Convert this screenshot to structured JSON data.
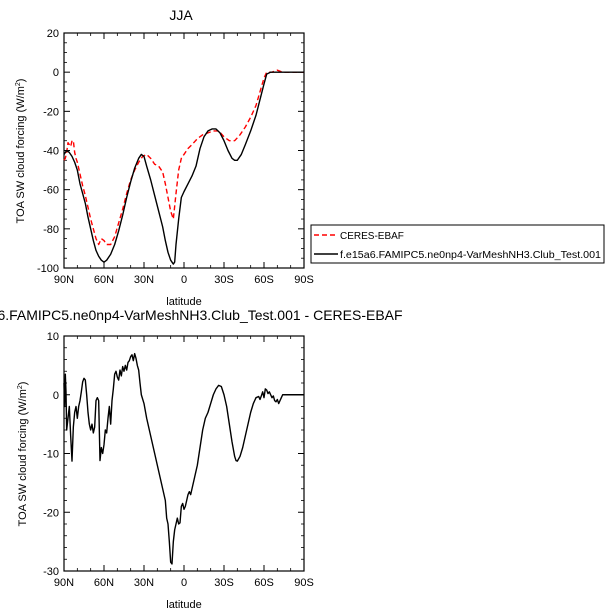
{
  "chart_data": [
    {
      "type": "line",
      "title": "JJA",
      "xlabel": "latitude",
      "ylabel_main": "TOA SW cloud forcing (W/m",
      "ylabel_sup": "2",
      "ylabel_close": ")",
      "xlim": [
        90,
        -90
      ],
      "ylim": [
        -100,
        20
      ],
      "xticks": [
        90,
        60,
        30,
        0,
        -30,
        -60,
        -90
      ],
      "xtick_labels": [
        "90N",
        "60N",
        "30N",
        "0",
        "30S",
        "60S",
        "90S"
      ],
      "yticks": [
        20,
        0,
        -20,
        -40,
        -60,
        -80,
        -100
      ],
      "ytick_labels": [
        "20",
        "0",
        "-20",
        "-40",
        "-60",
        "-80",
        "-100"
      ],
      "legend_position": "right",
      "series": [
        {
          "name": "CERES-EBAF",
          "color": "#ff0000",
          "style": "dashed",
          "points": [
            [
              90,
              -45
            ],
            [
              89,
              -44
            ],
            [
              88,
              -41
            ],
            [
              87,
              -36
            ],
            [
              86,
              -37
            ],
            [
              85,
              -38
            ],
            [
              84,
              -35
            ],
            [
              83,
              -35
            ],
            [
              82,
              -41
            ],
            [
              81,
              -44
            ],
            [
              80,
              -46
            ],
            [
              78,
              -52
            ],
            [
              76,
              -58
            ],
            [
              74,
              -63
            ],
            [
              72,
              -69
            ],
            [
              70,
              -75
            ],
            [
              68,
              -80
            ],
            [
              66,
              -85
            ],
            [
              64,
              -88
            ],
            [
              62,
              -85
            ],
            [
              60,
              -86
            ],
            [
              58,
              -88
            ],
            [
              55,
              -88
            ],
            [
              52,
              -84
            ],
            [
              49,
              -77
            ],
            [
              46,
              -70
            ],
            [
              43,
              -62
            ],
            [
              40,
              -55
            ],
            [
              37,
              -50
            ],
            [
              34,
              -46
            ],
            [
              31,
              -43
            ],
            [
              28,
              -42
            ],
            [
              25,
              -44
            ],
            [
              22,
              -47
            ],
            [
              19,
              -48
            ],
            [
              16,
              -51
            ],
            [
              14,
              -57
            ],
            [
              12,
              -64
            ],
            [
              10,
              -71
            ],
            [
              8,
              -75
            ],
            [
              6,
              -62
            ],
            [
              4,
              -50
            ],
            [
              2,
              -44
            ],
            [
              0,
              -42
            ],
            [
              -3,
              -39
            ],
            [
              -6,
              -37
            ],
            [
              -10,
              -34
            ],
            [
              -14,
              -32
            ],
            [
              -18,
              -31
            ],
            [
              -22,
              -30
            ],
            [
              -26,
              -30
            ],
            [
              -30,
              -33
            ],
            [
              -34,
              -35
            ],
            [
              -38,
              -35
            ],
            [
              -42,
              -32
            ],
            [
              -46,
              -28
            ],
            [
              -50,
              -23
            ],
            [
              -54,
              -17
            ],
            [
              -57,
              -10
            ],
            [
              -60,
              -3
            ],
            [
              -62,
              0
            ],
            [
              -66,
              0
            ],
            [
              -70,
              1
            ],
            [
              -74,
              0
            ],
            [
              -80,
              0
            ],
            [
              -90,
              0
            ]
          ]
        },
        {
          "name": "f.e15a6.FAMIPC5.ne0np4-VarMeshNH3.Club_Test.001",
          "color": "#000000",
          "style": "solid",
          "points": [
            [
              90,
              -42
            ],
            [
              88,
              -40
            ],
            [
              86,
              -41
            ],
            [
              84,
              -43
            ],
            [
              82,
              -46
            ],
            [
              80,
              -50
            ],
            [
              78,
              -57
            ],
            [
              76,
              -62
            ],
            [
              74,
              -67
            ],
            [
              72,
              -74
            ],
            [
              70,
              -80
            ],
            [
              68,
              -86
            ],
            [
              66,
              -91
            ],
            [
              64,
              -94
            ],
            [
              62,
              -96
            ],
            [
              60,
              -97
            ],
            [
              58,
              -96
            ],
            [
              55,
              -93
            ],
            [
              52,
              -88
            ],
            [
              49,
              -81
            ],
            [
              46,
              -73
            ],
            [
              43,
              -64
            ],
            [
              40,
              -56
            ],
            [
              37,
              -49
            ],
            [
              34,
              -44
            ],
            [
              32,
              -42
            ],
            [
              30,
              -43
            ],
            [
              28,
              -48
            ],
            [
              25,
              -55
            ],
            [
              22,
              -63
            ],
            [
              19,
              -71
            ],
            [
              16,
              -79
            ],
            [
              14,
              -86
            ],
            [
              12,
              -92
            ],
            [
              10,
              -96
            ],
            [
              8,
              -98
            ],
            [
              7,
              -97
            ],
            [
              6,
              -88
            ],
            [
              4,
              -75
            ],
            [
              2,
              -64
            ],
            [
              0,
              -61
            ],
            [
              -3,
              -57
            ],
            [
              -6,
              -53
            ],
            [
              -9,
              -48
            ],
            [
              -12,
              -39
            ],
            [
              -15,
              -33
            ],
            [
              -18,
              -30
            ],
            [
              -21,
              -29
            ],
            [
              -24,
              -29
            ],
            [
              -27,
              -31
            ],
            [
              -30,
              -35
            ],
            [
              -33,
              -40
            ],
            [
              -36,
              -44
            ],
            [
              -38,
              -45
            ],
            [
              -40,
              -45
            ],
            [
              -43,
              -42
            ],
            [
              -46,
              -37
            ],
            [
              -50,
              -30
            ],
            [
              -54,
              -22
            ],
            [
              -57,
              -14
            ],
            [
              -60,
              -6
            ],
            [
              -62,
              -1
            ],
            [
              -65,
              0
            ],
            [
              -68,
              0
            ],
            [
              -71,
              0
            ],
            [
              -74,
              0
            ],
            [
              -80,
              0
            ],
            [
              -90,
              0
            ]
          ]
        }
      ]
    },
    {
      "type": "line",
      "title": "6.FAMIPC5.ne0np4-VarMeshNH3.Club_Test.001 - CERES-EBAF",
      "xlabel": "latitude",
      "ylabel_main": "TOA SW cloud forcing (W/m",
      "ylabel_sup": "2",
      "ylabel_close": ")",
      "xlim": [
        90,
        -90
      ],
      "ylim": [
        -30,
        10
      ],
      "xticks": [
        90,
        60,
        30,
        0,
        -30,
        -60,
        -90
      ],
      "xtick_labels": [
        "90N",
        "60N",
        "30N",
        "0",
        "30S",
        "60S",
        "90S"
      ],
      "yticks": [
        10,
        0,
        -10,
        -20,
        -30
      ],
      "ytick_labels": [
        "10",
        "0",
        "-10",
        "-20",
        "-30"
      ],
      "series": [
        {
          "color": "#000000",
          "style": "solid",
          "points": [
            [
              90,
              2
            ],
            [
              89.5,
              -2
            ],
            [
              89,
              3.5
            ],
            [
              88.5,
              0.5
            ],
            [
              88,
              -6
            ],
            [
              87.5,
              -5
            ],
            [
              87,
              -4
            ],
            [
              86,
              -2
            ],
            [
              85,
              -7
            ],
            [
              84,
              -11.3
            ],
            [
              83,
              -5.5
            ],
            [
              82,
              -3
            ],
            [
              81,
              -2
            ],
            [
              80,
              -4
            ],
            [
              79,
              -2
            ],
            [
              78,
              -1
            ],
            [
              77,
              0.5
            ],
            [
              76,
              2.2
            ],
            [
              75,
              2.8
            ],
            [
              74,
              2.5
            ],
            [
              73,
              0
            ],
            [
              72,
              -3
            ],
            [
              71,
              -5
            ],
            [
              70,
              -6
            ],
            [
              69,
              -5
            ],
            [
              68,
              -6.5
            ],
            [
              67,
              -5.5
            ],
            [
              66,
              -1
            ],
            [
              65,
              -0.5
            ],
            [
              64,
              -1
            ],
            [
              63,
              -11.2
            ],
            [
              62,
              -9
            ],
            [
              61,
              -10
            ],
            [
              60,
              -8.5
            ],
            [
              59,
              -6
            ],
            [
              58,
              -6.5
            ],
            [
              57,
              -4
            ],
            [
              56,
              -2
            ],
            [
              55,
              -5
            ],
            [
              54,
              -1
            ],
            [
              53,
              1
            ],
            [
              52,
              3.5
            ],
            [
              51,
              4
            ],
            [
              50,
              3
            ],
            [
              49,
              2.5
            ],
            [
              48,
              4.2
            ],
            [
              47,
              3.2
            ],
            [
              46,
              4.8
            ],
            [
              45,
              4
            ],
            [
              44,
              5
            ],
            [
              43,
              4.2
            ],
            [
              42,
              5.5
            ],
            [
              41,
              5.8
            ],
            [
              40,
              6.5
            ],
            [
              39,
              6.8
            ],
            [
              38,
              5.8
            ],
            [
              37,
              7
            ],
            [
              36,
              6.2
            ],
            [
              35,
              5
            ],
            [
              34,
              4.2
            ],
            [
              33,
              2
            ],
            [
              32,
              0
            ],
            [
              30,
              -1.5
            ],
            [
              28,
              -4
            ],
            [
              26,
              -6
            ],
            [
              24,
              -8
            ],
            [
              22,
              -10
            ],
            [
              20,
              -12
            ],
            [
              18,
              -14
            ],
            [
              16,
              -16
            ],
            [
              14,
              -18
            ],
            [
              13,
              -21
            ],
            [
              12,
              -22
            ],
            [
              11,
              -25
            ],
            [
              10,
              -28.5
            ],
            [
              9,
              -28.8
            ],
            [
              8,
              -25
            ],
            [
              7,
              -23
            ],
            [
              6,
              -22
            ],
            [
              5,
              -21
            ],
            [
              4,
              -22
            ],
            [
              3,
              -21.8
            ],
            [
              2,
              -19
            ],
            [
              1,
              -18.5
            ],
            [
              0,
              -19.5
            ],
            [
              -1,
              -19
            ],
            [
              -2,
              -18
            ],
            [
              -3,
              -17
            ],
            [
              -4,
              -16.5
            ],
            [
              -5,
              -17
            ],
            [
              -6,
              -16
            ],
            [
              -8,
              -14
            ],
            [
              -10,
              -12
            ],
            [
              -12,
              -9
            ],
            [
              -14,
              -6
            ],
            [
              -16,
              -4
            ],
            [
              -18,
              -3
            ],
            [
              -20,
              -1.5
            ],
            [
              -22,
              0
            ],
            [
              -24,
              1
            ],
            [
              -26,
              1.6
            ],
            [
              -28,
              1.4
            ],
            [
              -30,
              0
            ],
            [
              -32,
              -2
            ],
            [
              -34,
              -5
            ],
            [
              -36,
              -8
            ],
            [
              -38,
              -10.5
            ],
            [
              -39,
              -11.2
            ],
            [
              -40,
              -11.3
            ],
            [
              -42,
              -10.5
            ],
            [
              -44,
              -9
            ],
            [
              -46,
              -7
            ],
            [
              -48,
              -5
            ],
            [
              -50,
              -3
            ],
            [
              -52,
              -1.5
            ],
            [
              -54,
              -0.5
            ],
            [
              -56,
              -0.3
            ],
            [
              -57,
              -0.8
            ],
            [
              -58,
              -0.2
            ],
            [
              -59,
              0.5
            ],
            [
              -60,
              -0.5
            ],
            [
              -61,
              1
            ],
            [
              -62,
              0.8
            ],
            [
              -63,
              0.2
            ],
            [
              -64,
              0.5
            ],
            [
              -65,
              0
            ],
            [
              -66,
              -0.5
            ],
            [
              -67,
              -0.2
            ],
            [
              -68,
              -1
            ],
            [
              -69,
              -1.2
            ],
            [
              -70,
              -0.8
            ],
            [
              -71,
              -1.5
            ],
            [
              -72,
              -1
            ],
            [
              -73,
              -0.5
            ],
            [
              -74,
              0
            ],
            [
              -76,
              0
            ],
            [
              -80,
              0
            ],
            [
              -90,
              0
            ]
          ]
        }
      ]
    }
  ]
}
